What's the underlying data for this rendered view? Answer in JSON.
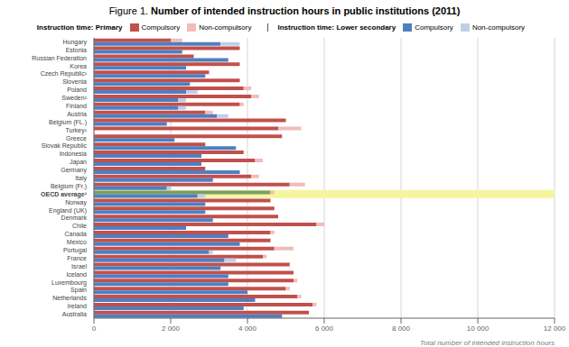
{
  "chart_data": {
    "type": "bar",
    "orientation": "horizontal",
    "stacked": true,
    "grid": true,
    "title": "Figure 1. Number of intended instruction hours in public institutions (2011)",
    "x_label": "Total number of intended instruction hours",
    "categories": [
      "Australia",
      "Ireland",
      "Netherlands",
      "Spain",
      "Luxembourg",
      "Iceland",
      "Israel",
      "France",
      "Portugal",
      "Mexico",
      "Canada",
      "Chile",
      "Denmark",
      "England (UK)",
      "Norway",
      "OECD average¹",
      "Belgium (Fr.)",
      "Italy",
      "Germany",
      "Japan",
      "Indonesia",
      "Slovak Republic",
      "Greece",
      "Turkey¹",
      "Belgium (FL.)",
      "Austria",
      "Finland",
      "Sweden²",
      "Poland",
      "Slovenia",
      "Czech Republic¹",
      "Korea",
      "Russian Federation",
      "Estonia",
      "Hungary"
    ],
    "series": [
      {
        "name": "Compulsory",
        "group": "Instruction time: Primary",
        "color": "#c0504d",
        "colors": [
          "#c0504d",
          "#c0504d",
          "#c0504d",
          "#c0504d",
          "#c0504d",
          "#c0504d",
          "#c0504d",
          "#c0504d",
          "#c0504d",
          "#c0504d",
          "#c0504d",
          "#c0504d",
          "#c0504d",
          "#c0504d",
          "#c0504d",
          "#7a9e67",
          "#c0504d",
          "#c0504d",
          "#c0504d",
          "#c0504d",
          "#c0504d",
          "#c0504d",
          "#c0504d",
          "#c0504d",
          "#c0504d",
          "#c0504d",
          "#c0504d",
          "#c0504d",
          "#c0504d",
          "#c0504d",
          "#c0504d",
          "#c0504d",
          "#c0504d",
          "#c0504d",
          "#c0504d"
        ],
        "values": [
          5600,
          5700,
          5300,
          5000,
          5200,
          5200,
          5100,
          4400,
          4700,
          4600,
          4600,
          5800,
          4800,
          4700,
          4600,
          4600,
          5100,
          4100,
          2900,
          4200,
          3900,
          2900,
          4900,
          4800,
          5000,
          2900,
          3800,
          4100,
          3900,
          3800,
          3000,
          3800,
          2600,
          3800,
          2000
        ]
      },
      {
        "name": "Non-compulsory",
        "group": "Instruction time: Primary",
        "color": "#f2bcba",
        "values": [
          0,
          100,
          100,
          100,
          100,
          0,
          0,
          100,
          500,
          0,
          100,
          200,
          0,
          0,
          0,
          100,
          400,
          200,
          0,
          200,
          0,
          0,
          0,
          600,
          0,
          200,
          100,
          200,
          200,
          0,
          0,
          0,
          0,
          0,
          300
        ]
      },
      {
        "name": "Compulsory",
        "group": "Instruction time: Lower secondary",
        "color": "#4f7fbf",
        "values": [
          4900,
          3900,
          4200,
          4000,
          3500,
          3500,
          3300,
          3400,
          3000,
          3800,
          3500,
          2400,
          3100,
          2900,
          2900,
          2700,
          1900,
          3100,
          3800,
          2800,
          2800,
          3700,
          2100,
          0,
          1900,
          3200,
          2200,
          2200,
          2400,
          2500,
          2900,
          2400,
          3500,
          2300,
          3300
        ]
      },
      {
        "name": "Non-compulsory",
        "group": "Instruction time: Lower secondary",
        "color": "#bfd0e5",
        "values": [
          0,
          0,
          0,
          0,
          0,
          0,
          0,
          300,
          100,
          0,
          0,
          0,
          0,
          0,
          0,
          200,
          100,
          0,
          0,
          0,
          0,
          0,
          0,
          0,
          0,
          300,
          200,
          200,
          300,
          0,
          0,
          0,
          0,
          0,
          500
        ]
      }
    ],
    "highlight": {
      "category": "OECD average¹",
      "color": "#f5f5a0"
    },
    "xlim": [
      0,
      12000
    ],
    "xticks": [
      0,
      {
        "value": 2000,
        "label": "2 000"
      },
      {
        "value": 4000,
        "label": "4 000"
      },
      {
        "value": 6000,
        "label": "6 000"
      },
      {
        "value": 8000,
        "label": "8 000"
      },
      {
        "value": 10000,
        "label": "10 000"
      },
      {
        "value": 12000,
        "label": "12 000"
      }
    ]
  }
}
